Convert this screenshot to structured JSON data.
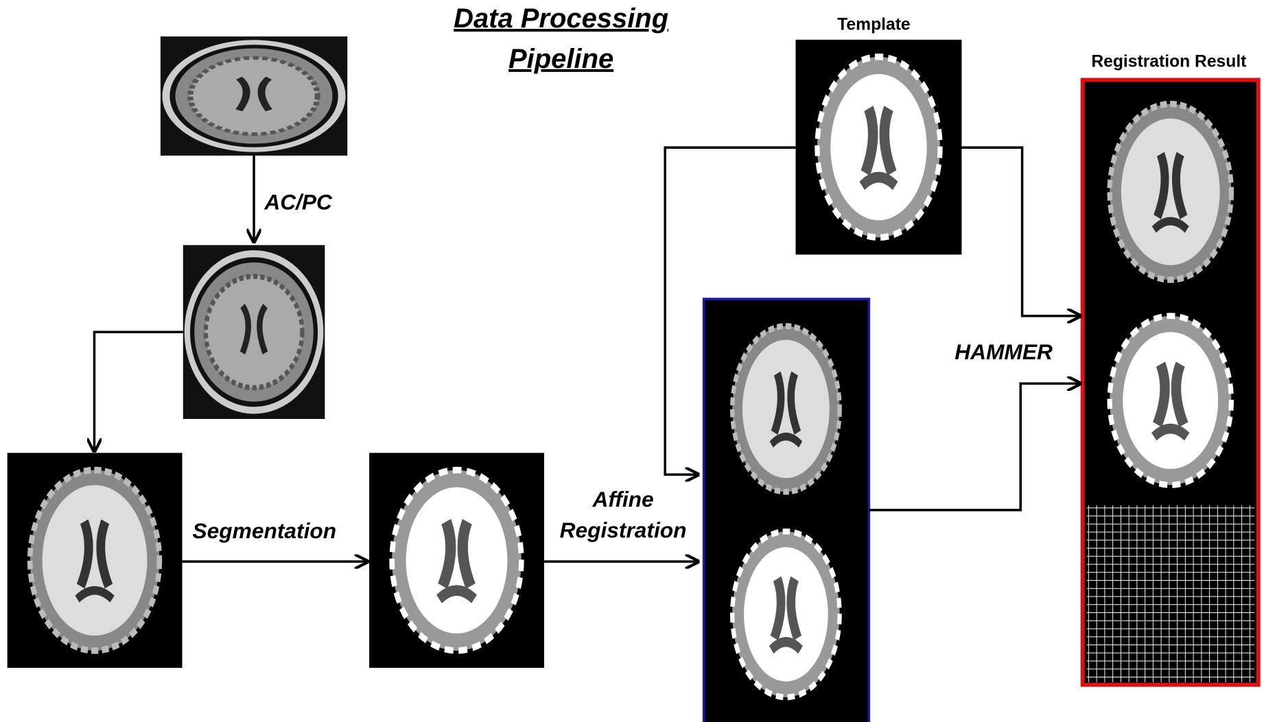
{
  "title": [
    "Data Processing",
    "Pipeline"
  ],
  "labels": {
    "template": "Template",
    "result": "Registration Result"
  },
  "steps": {
    "acpc": "AC/PC",
    "segmentation": "Segmentation",
    "affine": [
      "Affine",
      "Registration"
    ],
    "hammer": "HAMMER"
  }
}
